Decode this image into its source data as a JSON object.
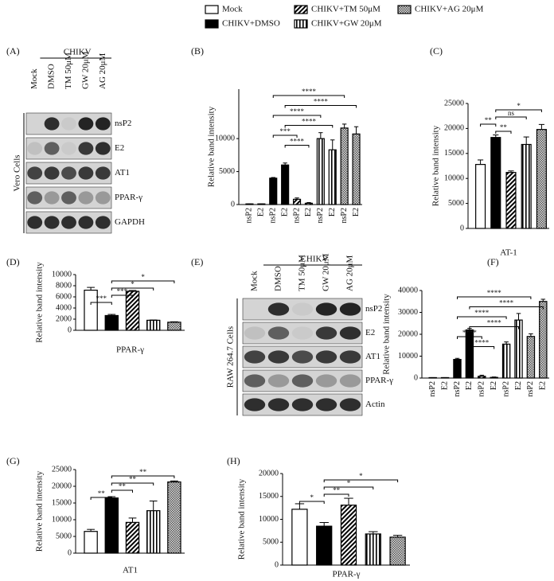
{
  "figure_legend": [
    {
      "name": "Mock",
      "pattern": "open"
    },
    {
      "name": "CHIKV+DMSO",
      "pattern": "solid"
    },
    {
      "name": "CHIKV+TM 50μM",
      "pattern": "diagonal"
    },
    {
      "name": "CHIKV+GW 20μM",
      "pattern": "vertical"
    },
    {
      "name": "CHIKV+AG 20μM",
      "pattern": "checker"
    }
  ],
  "blots": [
    {
      "panel": "(A)",
      "group": "CHIKV",
      "lanes": [
        "Mock",
        "DMSO",
        "TM 50μM",
        "GW 20μM",
        "AG 20μM"
      ],
      "cell_line": "Vero Cells",
      "rows": [
        "nsP2",
        "E2",
        "AT1",
        "PPAR-γ",
        "GAPDH"
      ]
    },
    {
      "panel": "(E)",
      "group": "CHIKV",
      "lanes": [
        "Mock",
        "DMSO",
        "TM 50μM",
        "GW 20μM",
        "AG 20μM"
      ],
      "cell_line": "RAW 264.7 Cells",
      "rows": [
        "nsP2",
        "E2",
        "AT1",
        "PPAR-γ",
        "Actin"
      ]
    }
  ],
  "chart_data": [
    {
      "type": "bar",
      "panel": "(B)",
      "ylabel": "Relative band intensity",
      "categories": [
        "nsP2",
        "E2",
        "nsP2",
        "E2",
        "nsP2",
        "E2",
        "nsP2",
        "E2",
        "nsP2",
        "E2"
      ],
      "values": [
        100,
        100,
        4000,
        6000,
        800,
        200,
        10000,
        8300,
        11600,
        10700
      ],
      "errors": [
        0,
        0,
        100,
        300,
        200,
        100,
        900,
        1500,
        600,
        1100
      ],
      "patterns": [
        "open",
        "open",
        "solid",
        "solid",
        "diagonal",
        "diagonal",
        "vertical",
        "vertical",
        "checker",
        "checker"
      ],
      "ylim": [
        0,
        17500
      ],
      "yticks": [
        0,
        5000,
        10000
      ],
      "significance": [
        {
          "label": "****",
          "from": 2,
          "to": 8
        },
        {
          "label": "****",
          "from": 3,
          "to": 9
        },
        {
          "label": "****",
          "from": 2,
          "to": 6
        },
        {
          "label": "****",
          "from": 3,
          "to": 7
        },
        {
          "label": "***",
          "from": 2,
          "to": 4
        },
        {
          "label": "****",
          "from": 3,
          "to": 5
        }
      ]
    },
    {
      "type": "bar",
      "panel": "(C)",
      "ylabel": "Relative band intensity",
      "xlabel": "AT-1",
      "values": [
        12800,
        18200,
        11200,
        16800,
        19800
      ],
      "errors": [
        900,
        500,
        300,
        1500,
        1000
      ],
      "patterns": [
        "open",
        "solid",
        "diagonal",
        "vertical",
        "checker"
      ],
      "ylim": [
        0,
        25000
      ],
      "yticks": [
        0,
        5000,
        10000,
        15000,
        20000,
        25000
      ],
      "significance": [
        {
          "label": "*",
          "from": 1,
          "to": 4
        },
        {
          "label": "ns",
          "from": 1,
          "to": 3
        },
        {
          "label": "**",
          "from": 0,
          "to": 1
        },
        {
          "label": "**",
          "from": 1,
          "to": 2
        }
      ]
    },
    {
      "type": "bar",
      "panel": "(D)",
      "ylabel": "Relative band intensity",
      "xlabel": "PPAR-γ",
      "values": [
        7200,
        2650,
        7000,
        1800,
        1450
      ],
      "errors": [
        500,
        200,
        150,
        50,
        80
      ],
      "patterns": [
        "open",
        "solid",
        "diagonal",
        "vertical",
        "checker"
      ],
      "ylim": [
        0,
        10000
      ],
      "yticks": [
        0,
        2000,
        4000,
        6000,
        8000,
        10000
      ],
      "significance": [
        {
          "label": "*",
          "from": 1,
          "to": 4
        },
        {
          "label": "*",
          "from": 1,
          "to": 3
        },
        {
          "label": "***",
          "from": 1,
          "to": 2
        },
        {
          "label": "***",
          "from": 0,
          "to": 1
        }
      ]
    },
    {
      "type": "bar",
      "panel": "(F)",
      "ylabel": "Relative band intensity",
      "categories": [
        "nsP2",
        "E2",
        "nsP2",
        "E2",
        "nsP2",
        "E2",
        "nsP2",
        "E2",
        "nsP2",
        "E2"
      ],
      "values": [
        200,
        200,
        8500,
        22000,
        800,
        300,
        15500,
        26500,
        19000,
        35000
      ],
      "errors": [
        0,
        0,
        500,
        700,
        500,
        200,
        1000,
        3000,
        1200,
        1000
      ],
      "patterns": [
        "open",
        "open",
        "solid",
        "solid",
        "diagonal",
        "diagonal",
        "vertical",
        "vertical",
        "checker",
        "checker"
      ],
      "ylim": [
        0,
        40000
      ],
      "yticks": [
        0,
        10000,
        20000,
        30000,
        40000
      ],
      "significance": [
        {
          "label": "****",
          "from": 2,
          "to": 8
        },
        {
          "label": "****",
          "from": 3,
          "to": 9
        },
        {
          "label": "****",
          "from": 2,
          "to": 6
        },
        {
          "label": "****",
          "from": 3,
          "to": 7
        },
        {
          "label": "****",
          "from": 2,
          "to": 4
        },
        {
          "label": "****",
          "from": 3,
          "to": 5
        }
      ]
    },
    {
      "type": "bar",
      "panel": "(G)",
      "ylabel": "Relative band intensity",
      "xlabel": "AT1",
      "values": [
        6500,
        16500,
        9200,
        12700,
        21300
      ],
      "errors": [
        600,
        400,
        1300,
        2900,
        300
      ],
      "patterns": [
        "open",
        "solid",
        "diagonal",
        "vertical",
        "checker"
      ],
      "ylim": [
        0,
        25000
      ],
      "yticks": [
        0,
        5000,
        10000,
        15000,
        20000,
        25000
      ],
      "significance": [
        {
          "label": "**",
          "from": 1,
          "to": 4
        },
        {
          "label": "**",
          "from": 1,
          "to": 3
        },
        {
          "label": "**",
          "from": 1,
          "to": 2
        },
        {
          "label": "**",
          "from": 0,
          "to": 1
        }
      ]
    },
    {
      "type": "bar",
      "panel": "(H)",
      "ylabel": "Relative band intensity",
      "xlabel": "PPAR-γ",
      "values": [
        12200,
        8500,
        13100,
        6800,
        6100
      ],
      "errors": [
        1200,
        800,
        1500,
        500,
        400
      ],
      "patterns": [
        "open",
        "solid",
        "diagonal",
        "vertical",
        "checker"
      ],
      "ylim": [
        0,
        20000
      ],
      "yticks": [
        0,
        5000,
        10000,
        15000,
        20000
      ],
      "significance": [
        {
          "label": "*",
          "from": 1,
          "to": 4
        },
        {
          "label": "*",
          "from": 1,
          "to": 3
        },
        {
          "label": "**",
          "from": 1,
          "to": 2
        },
        {
          "label": "*",
          "from": 0,
          "to": 1
        }
      ]
    }
  ]
}
